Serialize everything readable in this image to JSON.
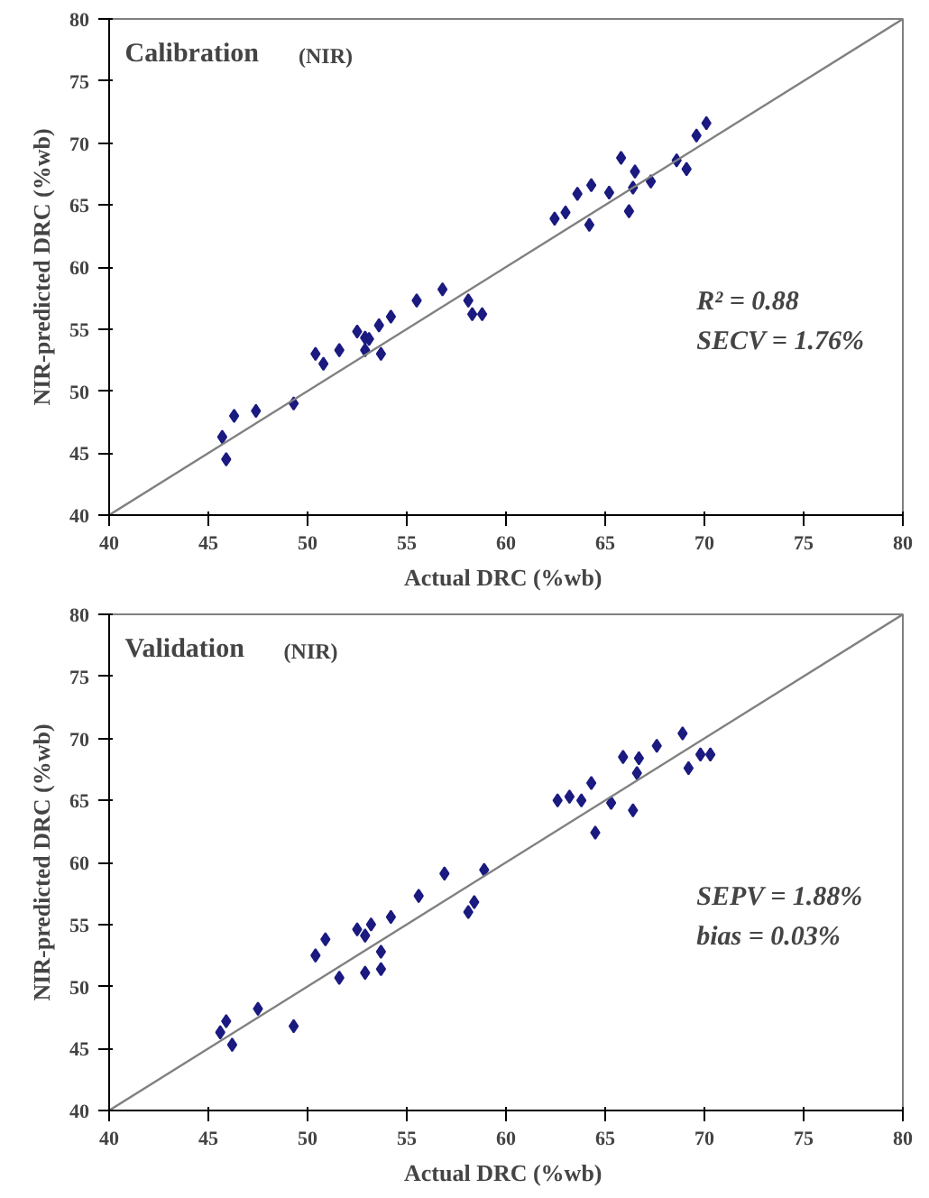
{
  "chart_data": [
    {
      "type": "scatter",
      "title": "Calibration",
      "subtitle": "(NIR)",
      "xlabel": "Actual  DRC (%wb)",
      "ylabel": "NIR-predicted DRC (%wb)",
      "xlim": [
        40,
        80
      ],
      "ylim": [
        40,
        80
      ],
      "xticks": [
        40,
        45,
        50,
        55,
        60,
        65,
        70,
        75,
        80
      ],
      "yticks": [
        40,
        45,
        50,
        55,
        60,
        65,
        70,
        75,
        80
      ],
      "grid": false,
      "marker": "diamond",
      "annotations": [
        "R² = 0.88",
        "SECV = 1.76%"
      ],
      "series": [
        {
          "color": "#1a1a80",
          "x": [
            62.45,
            63.0,
            63.6,
            64.2,
            64.3,
            65.2,
            65.8,
            66.2,
            66.4,
            66.5,
            67.3,
            68.6,
            69.1,
            69.6,
            70.1,
            55.5,
            56.8,
            58.1,
            58.3,
            58.8,
            54.2,
            53.6,
            52.5,
            52.9,
            53.1,
            52.9,
            53.7,
            51.6,
            50.4,
            50.8,
            49.3,
            47.4,
            46.3,
            45.7,
            45.9
          ],
          "values": [
            63.9,
            64.4,
            65.9,
            63.4,
            66.6,
            66.0,
            68.8,
            64.5,
            66.4,
            67.7,
            66.9,
            68.6,
            67.9,
            70.6,
            71.6,
            57.3,
            58.2,
            57.3,
            56.2,
            56.2,
            56.0,
            55.3,
            54.8,
            54.3,
            54.2,
            53.3,
            53.0,
            53.3,
            53.0,
            52.2,
            49.0,
            48.4,
            48.0,
            46.3,
            44.5
          ]
        },
        {
          "type": "line",
          "marker": "none",
          "color": "#808080",
          "x": [
            40,
            80
          ],
          "values": [
            40,
            80
          ]
        }
      ]
    },
    {
      "type": "scatter",
      "title": "Validation",
      "subtitle": "(NIR)",
      "xlabel": "Actual  DRC (%wb)",
      "ylabel": "NIR-predicted DRC (%wb)",
      "xlim": [
        40,
        80
      ],
      "ylim": [
        40,
        80
      ],
      "xticks": [
        40,
        45,
        50,
        55,
        60,
        65,
        70,
        75,
        80
      ],
      "yticks": [
        40,
        45,
        50,
        55,
        60,
        65,
        70,
        75,
        80
      ],
      "grid": false,
      "marker": "diamond",
      "annotations": [
        "SEPV  = 1.88%",
        "bias     = 0.03%"
      ],
      "series": [
        {
          "color": "#1a1a80",
          "x": [
            62.6,
            63.2,
            63.8,
            64.3,
            64.5,
            65.3,
            65.9,
            66.4,
            66.6,
            66.7,
            67.6,
            68.9,
            69.2,
            69.8,
            70.3,
            56.9,
            58.9,
            58.1,
            58.4,
            55.6,
            54.2,
            53.2,
            52.5,
            52.9,
            50.9,
            50.4,
            53.7,
            53.7,
            52.9,
            51.6,
            47.5,
            49.3,
            45.9,
            45.6,
            46.2
          ],
          "values": [
            65.0,
            65.3,
            65.0,
            66.4,
            62.4,
            64.8,
            68.5,
            64.2,
            67.2,
            68.4,
            69.4,
            70.4,
            67.6,
            68.7,
            68.7,
            59.1,
            59.4,
            56.0,
            56.8,
            57.3,
            55.6,
            55.0,
            54.6,
            54.1,
            53.8,
            52.5,
            52.8,
            51.4,
            51.1,
            50.7,
            48.2,
            46.8,
            47.2,
            46.3,
            45.3
          ]
        },
        {
          "type": "line",
          "marker": "none",
          "color": "#808080",
          "x": [
            40,
            80
          ],
          "values": [
            40,
            80
          ]
        }
      ]
    }
  ]
}
